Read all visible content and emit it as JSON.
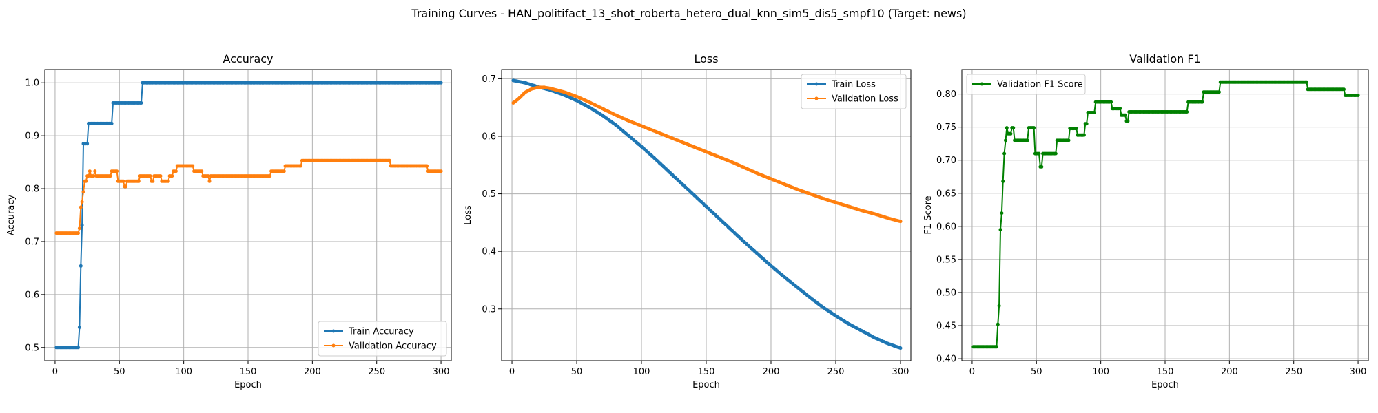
{
  "suptitle": "Training Curves - HAN_politifact_13_shot_roberta_hetero_dual_knn_sim5_dis5_smpf10 (Target: news)",
  "colors": {
    "blue": "#1f77b4",
    "orange": "#ff7f0e",
    "green": "#008000",
    "grid": "#b0b0b0"
  },
  "chart_data": [
    {
      "type": "line",
      "title": "Accuracy",
      "xlabel": "Epoch",
      "ylabel": "Accuracy",
      "xlim": [
        -8,
        308
      ],
      "ylim": [
        0.475,
        1.025
      ],
      "xticks": [
        0,
        50,
        100,
        150,
        200,
        250,
        300
      ],
      "yticks": [
        0.5,
        0.6,
        0.7,
        0.8,
        0.9,
        1.0
      ],
      "ytick_labels": [
        "0.5",
        "0.6",
        "0.7",
        "0.8",
        "0.9",
        "1.0"
      ],
      "grid": true,
      "legend": "lower-right",
      "x_range": [
        1,
        300
      ],
      "series": [
        {
          "name": "Train Accuracy",
          "color": "#1f77b4",
          "steps": [
            [
              1,
              0.5
            ],
            [
              19,
              0.538
            ],
            [
              20,
              0.654
            ],
            [
              21,
              0.731
            ],
            [
              22,
              0.885
            ],
            [
              26,
              0.923
            ],
            [
              45,
              0.962
            ],
            [
              68,
              1.0
            ]
          ]
        },
        {
          "name": "Validation Accuracy",
          "color": "#ff7f0e",
          "steps": [
            [
              1,
              0.716
            ],
            [
              19,
              0.725
            ],
            [
              20,
              0.765
            ],
            [
              21,
              0.775
            ],
            [
              22,
              0.794
            ],
            [
              23,
              0.814
            ],
            [
              25,
              0.824
            ],
            [
              27,
              0.833
            ],
            [
              28,
              0.824
            ],
            [
              31,
              0.833
            ],
            [
              32,
              0.824
            ],
            [
              44,
              0.833
            ],
            [
              49,
              0.814
            ],
            [
              54,
              0.804
            ],
            [
              56,
              0.814
            ],
            [
              66,
              0.824
            ],
            [
              75,
              0.814
            ],
            [
              77,
              0.824
            ],
            [
              83,
              0.814
            ],
            [
              89,
              0.824
            ],
            [
              92,
              0.833
            ],
            [
              95,
              0.843
            ],
            [
              108,
              0.833
            ],
            [
              115,
              0.824
            ],
            [
              120,
              0.814
            ],
            [
              121,
              0.824
            ],
            [
              168,
              0.833
            ],
            [
              179,
              0.843
            ],
            [
              192,
              0.853
            ],
            [
              261,
              0.843
            ],
            [
              290,
              0.833
            ]
          ]
        }
      ]
    },
    {
      "type": "line",
      "title": "Loss",
      "xlabel": "Epoch",
      "ylabel": "Loss",
      "xlim": [
        -8,
        308
      ],
      "ylim": [
        0.21,
        0.716
      ],
      "xticks": [
        0,
        50,
        100,
        150,
        200,
        250,
        300
      ],
      "yticks": [
        0.3,
        0.4,
        0.5,
        0.6,
        0.7
      ],
      "ytick_labels": [
        "0.3",
        "0.4",
        "0.5",
        "0.6",
        "0.7"
      ],
      "grid": true,
      "legend": "top-right",
      "x_range": [
        1,
        300
      ],
      "series": [
        {
          "name": "Train Loss",
          "color": "#1f77b4",
          "points": [
            [
              1,
              0.697
            ],
            [
              10,
              0.693
            ],
            [
              20,
              0.686
            ],
            [
              30,
              0.68
            ],
            [
              40,
              0.672
            ],
            [
              50,
              0.662
            ],
            [
              60,
              0.65
            ],
            [
              70,
              0.636
            ],
            [
              80,
              0.62
            ],
            [
              90,
              0.601
            ],
            [
              100,
              0.582
            ],
            [
              110,
              0.562
            ],
            [
              120,
              0.541
            ],
            [
              130,
              0.52
            ],
            [
              140,
              0.499
            ],
            [
              150,
              0.478
            ],
            [
              160,
              0.457
            ],
            [
              170,
              0.436
            ],
            [
              180,
              0.415
            ],
            [
              190,
              0.395
            ],
            [
              200,
              0.375
            ],
            [
              210,
              0.356
            ],
            [
              220,
              0.338
            ],
            [
              230,
              0.32
            ],
            [
              240,
              0.303
            ],
            [
              250,
              0.288
            ],
            [
              260,
              0.274
            ],
            [
              270,
              0.262
            ],
            [
              280,
              0.25
            ],
            [
              290,
              0.24
            ],
            [
              300,
              0.232
            ]
          ]
        },
        {
          "name": "Validation Loss",
          "color": "#ff7f0e",
          "points": [
            [
              1,
              0.658
            ],
            [
              5,
              0.665
            ],
            [
              10,
              0.676
            ],
            [
              15,
              0.682
            ],
            [
              20,
              0.685
            ],
            [
              25,
              0.685
            ],
            [
              30,
              0.683
            ],
            [
              40,
              0.677
            ],
            [
              50,
              0.669
            ],
            [
              60,
              0.659
            ],
            [
              70,
              0.648
            ],
            [
              80,
              0.637
            ],
            [
              90,
              0.627
            ],
            [
              100,
              0.618
            ],
            [
              110,
              0.609
            ],
            [
              120,
              0.6
            ],
            [
              130,
              0.591
            ],
            [
              140,
              0.582
            ],
            [
              150,
              0.573
            ],
            [
              160,
              0.564
            ],
            [
              170,
              0.555
            ],
            [
              180,
              0.545
            ],
            [
              190,
              0.535
            ],
            [
              200,
              0.526
            ],
            [
              210,
              0.517
            ],
            [
              220,
              0.508
            ],
            [
              230,
              0.5
            ],
            [
              240,
              0.492
            ],
            [
              250,
              0.485
            ],
            [
              260,
              0.478
            ],
            [
              270,
              0.471
            ],
            [
              280,
              0.465
            ],
            [
              290,
              0.458
            ],
            [
              300,
              0.452
            ]
          ]
        }
      ]
    },
    {
      "type": "line",
      "title": "Validation F1",
      "xlabel": "Epoch",
      "ylabel": "F1 Score",
      "xlim": [
        -8,
        308
      ],
      "ylim": [
        0.397,
        0.837
      ],
      "xticks": [
        0,
        50,
        100,
        150,
        200,
        250,
        300
      ],
      "yticks": [
        0.4,
        0.45,
        0.5,
        0.55,
        0.6,
        0.65,
        0.7,
        0.75,
        0.8
      ],
      "ytick_labels": [
        "0.40",
        "0.45",
        "0.50",
        "0.55",
        "0.60",
        "0.65",
        "0.70",
        "0.75",
        "0.80"
      ],
      "grid": true,
      "legend": "top-left",
      "x_range": [
        1,
        300
      ],
      "series": [
        {
          "name": "Validation F1 Score",
          "color": "#008000",
          "steps": [
            [
              1,
              0.418
            ],
            [
              20,
              0.452
            ],
            [
              21,
              0.48
            ],
            [
              22,
              0.595
            ],
            [
              23,
              0.62
            ],
            [
              24,
              0.668
            ],
            [
              25,
              0.71
            ],
            [
              26,
              0.73
            ],
            [
              27,
              0.749
            ],
            [
              28,
              0.74
            ],
            [
              31,
              0.749
            ],
            [
              33,
              0.73
            ],
            [
              44,
              0.749
            ],
            [
              49,
              0.71
            ],
            [
              53,
              0.69
            ],
            [
              55,
              0.71
            ],
            [
              66,
              0.73
            ],
            [
              76,
              0.748
            ],
            [
              82,
              0.738
            ],
            [
              88,
              0.755
            ],
            [
              90,
              0.772
            ],
            [
              96,
              0.788
            ],
            [
              109,
              0.778
            ],
            [
              116,
              0.768
            ],
            [
              120,
              0.759
            ],
            [
              122,
              0.773
            ],
            [
              168,
              0.788
            ],
            [
              180,
              0.803
            ],
            [
              193,
              0.818
            ],
            [
              261,
              0.807
            ],
            [
              290,
              0.798
            ]
          ]
        }
      ]
    }
  ]
}
